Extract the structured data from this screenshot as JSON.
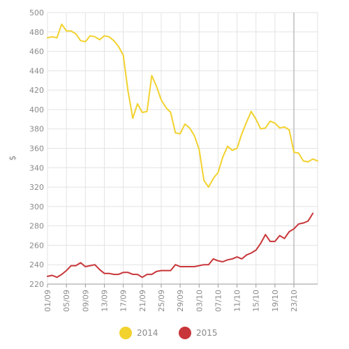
{
  "chart_data": {
    "type": "line",
    "ylabel": "$",
    "ylim": [
      220,
      500
    ],
    "y_ticks": [
      220,
      240,
      260,
      280,
      300,
      320,
      340,
      360,
      380,
      400,
      420,
      440,
      460,
      480,
      500
    ],
    "x_tick_labels": [
      "01/09",
      "05/09",
      "09/09",
      "13/09",
      "17/09",
      "21/09",
      "25/09",
      "29/09",
      "03/10",
      "07/10",
      "11/10",
      "15/10",
      "19/10",
      "23/10"
    ],
    "grid": true,
    "legend_position": "bottom",
    "series": [
      {
        "name": "2014",
        "color": "#f2d22e",
        "values": [
          474,
          475,
          474,
          488,
          481,
          481,
          478,
          471,
          470,
          476,
          475,
          472,
          476,
          475,
          471,
          465,
          456,
          419,
          391,
          406,
          397,
          398,
          435,
          424,
          410,
          402,
          397,
          376,
          375,
          385,
          381,
          373,
          359,
          327,
          320,
          329,
          335,
          351,
          362,
          358,
          360,
          375,
          387,
          398,
          390,
          380,
          381,
          388,
          386,
          381,
          382,
          379,
          356,
          355,
          347,
          346,
          349,
          347
        ]
      },
      {
        "name": "2015",
        "color": "#c8363a",
        "values": [
          228,
          229,
          227,
          230,
          234,
          239,
          239,
          242,
          238,
          239,
          240,
          235,
          231,
          231,
          230,
          230,
          232,
          232,
          230,
          230,
          227,
          230,
          230,
          233,
          234,
          234,
          234,
          240,
          238,
          238,
          238,
          238,
          239,
          240,
          240,
          246,
          244,
          243,
          245,
          246,
          248,
          246,
          250,
          252,
          255,
          262,
          271,
          264,
          264,
          270,
          267,
          274,
          277,
          282,
          283,
          285,
          293
        ]
      }
    ]
  }
}
